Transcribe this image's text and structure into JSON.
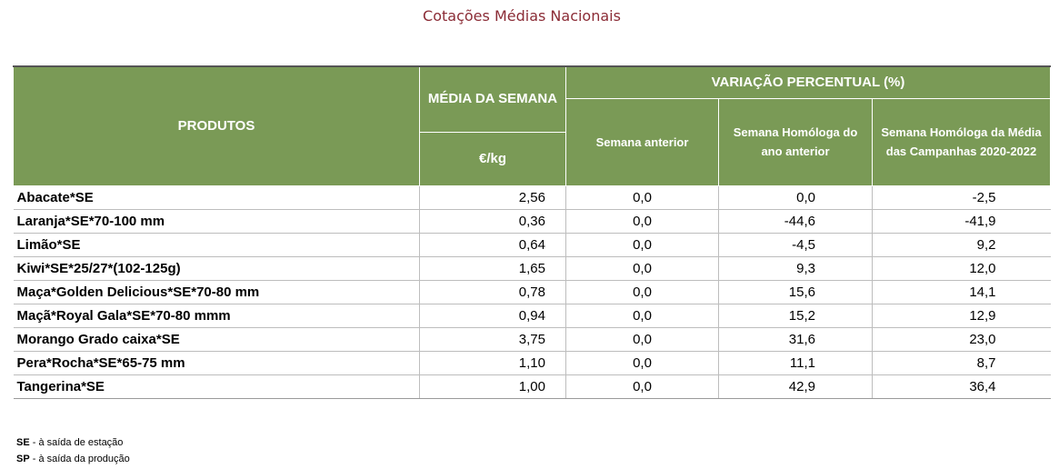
{
  "title": "Cotações Médias Nacionais",
  "headers": {
    "produtos": "PRODUTOS",
    "media_semana": "MÉDIA DA SEMANA",
    "unit": "€/kg",
    "variacao": "VARIAÇÃO PERCENTUAL (%)",
    "semana_anterior": "Semana anterior",
    "homologa_ano_anterior": "Semana Homóloga do ano anterior",
    "homologa_media_campanhas": "Semana Homóloga da Média das Campanhas 2020-2022"
  },
  "rows": [
    {
      "produto": "Abacate*SE",
      "media": "2,56",
      "semana_anterior": "0,0",
      "homologa_ano": "0,0",
      "homologa_media": "-2,5"
    },
    {
      "produto": "Laranja*SE*70-100 mm",
      "media": "0,36",
      "semana_anterior": "0,0",
      "homologa_ano": "-44,6",
      "homologa_media": "-41,9"
    },
    {
      "produto": "Limão*SE",
      "media": "0,64",
      "semana_anterior": "0,0",
      "homologa_ano": "-4,5",
      "homologa_media": "9,2"
    },
    {
      "produto": "Kiwi*SE*25/27*(102-125g)",
      "media": "1,65",
      "semana_anterior": "0,0",
      "homologa_ano": "9,3",
      "homologa_media": "12,0"
    },
    {
      "produto": "Maça*Golden Delicious*SE*70-80 mm",
      "media": "0,78",
      "semana_anterior": "0,0",
      "homologa_ano": "15,6",
      "homologa_media": "14,1"
    },
    {
      "produto": "Maçã*Royal Gala*SE*70-80 mmm",
      "media": "0,94",
      "semana_anterior": "0,0",
      "homologa_ano": "15,2",
      "homologa_media": "12,9"
    },
    {
      "produto": "Morango Grado caixa*SE",
      "media": "3,75",
      "semana_anterior": "0,0",
      "homologa_ano": "31,6",
      "homologa_media": "23,0"
    },
    {
      "produto": "Pera*Rocha*SE*65-75 mm",
      "media": "1,10",
      "semana_anterior": "0,0",
      "homologa_ano": "11,1",
      "homologa_media": "8,7"
    },
    {
      "produto": "Tangerina*SE",
      "media": "1,00",
      "semana_anterior": "0,0",
      "homologa_ano": "42,9",
      "homologa_media": "36,4"
    }
  ],
  "notes": [
    {
      "abbr": "SE",
      "text": " - à saída de estação"
    },
    {
      "abbr": "SP",
      "text": " - à saída da produção"
    }
  ],
  "colors": {
    "header_bg": "#7a9a56",
    "title": "#8b2c36"
  }
}
